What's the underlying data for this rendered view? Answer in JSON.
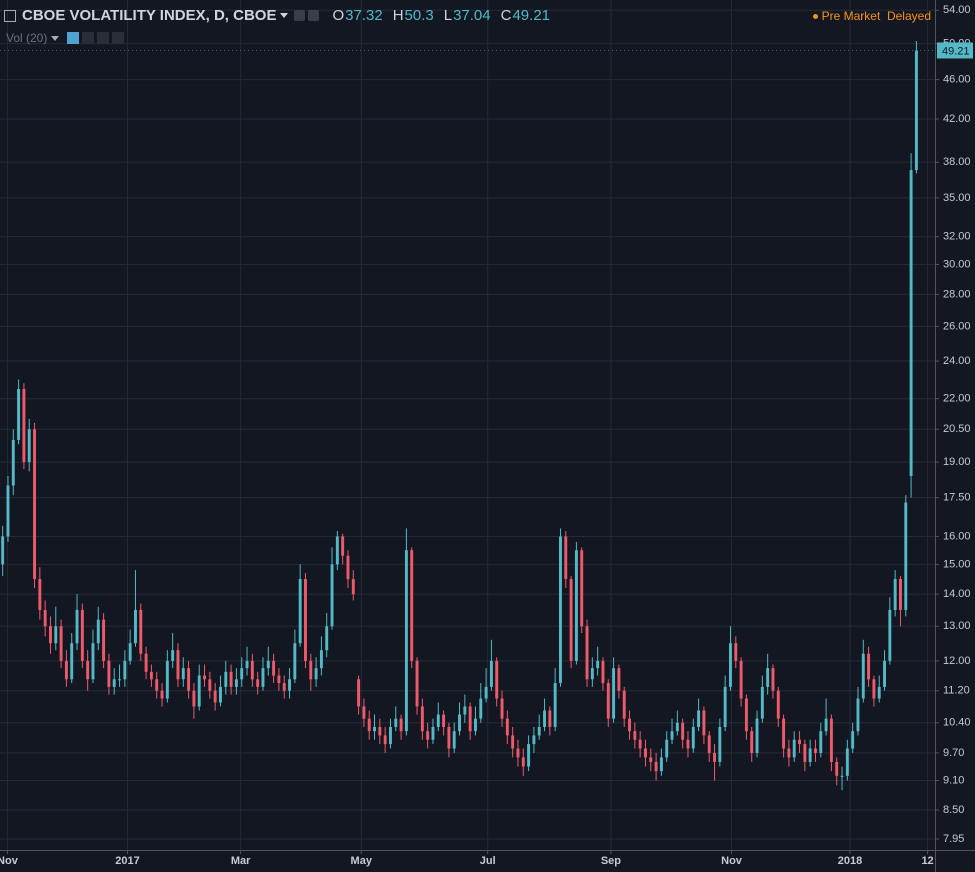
{
  "chart_data": {
    "type": "candlestick",
    "title": "CBOE VOLATILITY INDEX, D, CBOE",
    "ohlc_labels": [
      "O",
      "H",
      "L",
      "C"
    ],
    "indicator": "Vol (20)",
    "market_status": "Pre Market",
    "feed_status": "Delayed",
    "up_color": "#53b9c7",
    "down_color": "#ef5a6b",
    "log_scale": true,
    "grid": true,
    "open": [
      15.0,
      16.0,
      18.0,
      20.0,
      22.5,
      19.0,
      20.5,
      14.5,
      13.5,
      13.0,
      12.5,
      13.0,
      12.0,
      11.5,
      12.5,
      13.5,
      12.0,
      11.5,
      12.5,
      13.2,
      12.0,
      11.3,
      11.5,
      11.5,
      12.0,
      12.5,
      13.5,
      12.2,
      11.7,
      11.5,
      11.2,
      11.0,
      12.0,
      12.3,
      11.5,
      11.8,
      11.2,
      10.8,
      11.6,
      11.5,
      11.2,
      10.9,
      11.3,
      11.7,
      11.3,
      11.5,
      11.8,
      12.0,
      11.5,
      11.3,
      11.8,
      12.0,
      11.6,
      11.4,
      11.2,
      11.5,
      12.5,
      14.5,
      12.0,
      11.5,
      11.8,
      12.3,
      13.0,
      15.0,
      16.0,
      15.3,
      14.5,
      11.5,
      10.8,
      10.5,
      10.2,
      10.3,
      10.1,
      9.9,
      10.3,
      10.5,
      10.2,
      15.5,
      12.0,
      10.8,
      10.2,
      10.0,
      10.3,
      10.6,
      10.3,
      9.8,
      10.2,
      10.6,
      10.8,
      10.2,
      10.5,
      11.0,
      11.3,
      12.0,
      11.0,
      10.5,
      10.1,
      9.8,
      9.6,
      9.4,
      9.9,
      10.1,
      10.3,
      10.7,
      10.3,
      11.4,
      16.0,
      14.5,
      12.0,
      15.5,
      13.0,
      11.5,
      11.8,
      12.0,
      11.4,
      10.5,
      11.8,
      11.2,
      10.5,
      10.2,
      10.0,
      9.8,
      9.6,
      9.5,
      9.3,
      9.6,
      10.0,
      10.2,
      10.4,
      10.0,
      9.8,
      10.3,
      10.7,
      10.1,
      9.7,
      9.5,
      10.3,
      11.3,
      12.5,
      12.0,
      11.0,
      10.2,
      9.7,
      10.5,
      11.3,
      11.8,
      11.2,
      10.5,
      9.8,
      9.6,
      10.0,
      9.9,
      9.5,
      9.8,
      9.7,
      10.2,
      10.5,
      9.5,
      9.2,
      9.2,
      9.8,
      10.2,
      11.0,
      12.2,
      11.5,
      11.0,
      11.3,
      12.0,
      13.5,
      14.5,
      13.5,
      18.4,
      37.32
    ],
    "high": [
      16.4,
      18.4,
      20.5,
      23.0,
      22.8,
      21.0,
      20.8,
      14.9,
      13.8,
      13.3,
      13.6,
      13.2,
      12.3,
      12.8,
      14.0,
      13.7,
      12.3,
      12.9,
      13.6,
      13.4,
      12.2,
      11.8,
      11.9,
      12.3,
      12.9,
      14.8,
      13.7,
      12.4,
      11.9,
      11.7,
      11.4,
      12.3,
      12.8,
      12.5,
      12.1,
      12.0,
      11.4,
      11.9,
      11.9,
      11.7,
      11.4,
      11.6,
      12.0,
      11.9,
      11.8,
      12.1,
      12.4,
      12.2,
      11.7,
      12.1,
      12.4,
      12.2,
      11.8,
      11.6,
      11.8,
      12.9,
      15.0,
      14.7,
      12.2,
      12.1,
      12.7,
      13.4,
      15.6,
      16.2,
      16.1,
      15.5,
      14.8,
      11.6,
      11.0,
      10.7,
      10.6,
      10.5,
      10.3,
      10.5,
      10.8,
      10.6,
      16.3,
      15.6,
      12.1,
      11.0,
      10.4,
      10.5,
      10.9,
      10.7,
      10.4,
      10.4,
      10.9,
      11.1,
      10.9,
      10.8,
      11.4,
      11.8,
      12.6,
      12.1,
      11.2,
      10.7,
      10.3,
      10.0,
      9.8,
      10.1,
      10.3,
      10.6,
      11.0,
      10.8,
      11.8,
      16.3,
      16.2,
      14.6,
      15.8,
      15.6,
      13.2,
      12.1,
      12.4,
      12.1,
      11.5,
      12.1,
      11.9,
      11.3,
      10.7,
      10.4,
      10.2,
      10.0,
      9.8,
      9.7,
      9.8,
      10.2,
      10.5,
      10.7,
      10.5,
      10.2,
      10.5,
      11.0,
      10.8,
      10.2,
      9.9,
      10.5,
      11.6,
      13.0,
      12.7,
      12.1,
      11.1,
      10.3,
      10.7,
      11.6,
      12.2,
      11.9,
      11.3,
      10.6,
      10.0,
      10.2,
      10.2,
      10.0,
      10.0,
      10.0,
      10.4,
      11.0,
      10.6,
      9.6,
      9.4,
      10.0,
      10.4,
      11.3,
      12.6,
      12.4,
      11.6,
      11.6,
      12.3,
      13.9,
      14.8,
      14.6,
      17.6,
      38.8,
      50.3
    ],
    "low": [
      14.6,
      15.8,
      17.6,
      19.8,
      18.7,
      18.6,
      14.2,
      13.2,
      12.7,
      12.2,
      12.3,
      11.8,
      11.3,
      11.4,
      12.3,
      11.8,
      11.2,
      11.4,
      12.3,
      11.8,
      11.1,
      11.1,
      11.3,
      11.3,
      11.9,
      12.4,
      12.0,
      11.5,
      11.3,
      11.0,
      10.8,
      10.9,
      11.8,
      11.3,
      11.3,
      11.0,
      10.5,
      10.7,
      11.3,
      11.0,
      10.7,
      10.8,
      11.1,
      11.1,
      11.1,
      11.3,
      11.6,
      11.3,
      11.1,
      11.2,
      11.6,
      11.4,
      11.2,
      11.0,
      11.0,
      11.4,
      12.4,
      11.8,
      11.2,
      11.3,
      11.6,
      12.1,
      12.9,
      14.8,
      15.0,
      14.2,
      13.8,
      10.6,
      10.3,
      10.0,
      10.0,
      9.9,
      9.7,
      9.8,
      10.2,
      10.0,
      10.1,
      11.8,
      10.6,
      10.0,
      9.8,
      9.9,
      10.2,
      10.1,
      9.6,
      9.7,
      10.1,
      10.4,
      10.0,
      10.1,
      10.4,
      10.9,
      11.2,
      10.8,
      10.3,
      9.9,
      9.6,
      9.4,
      9.2,
      9.3,
      9.7,
      10.0,
      10.2,
      10.1,
      10.2,
      11.3,
      14.2,
      11.8,
      11.9,
      12.8,
      11.3,
      11.3,
      11.6,
      11.2,
      10.3,
      10.4,
      11.0,
      10.3,
      10.0,
      9.8,
      9.6,
      9.4,
      9.3,
      9.1,
      9.2,
      9.5,
      9.9,
      10.1,
      9.8,
      9.6,
      9.7,
      10.2,
      9.9,
      9.5,
      9.1,
      9.4,
      10.2,
      11.2,
      11.8,
      10.8,
      10.0,
      9.5,
      9.6,
      10.4,
      11.1,
      11.0,
      10.3,
      9.6,
      9.4,
      9.5,
      9.7,
      9.3,
      9.4,
      9.5,
      9.6,
      10.1,
      9.3,
      9.0,
      8.9,
      9.1,
      9.7,
      10.1,
      10.9,
      11.3,
      10.8,
      10.9,
      11.2,
      11.9,
      13.3,
      13.0,
      13.3,
      17.5,
      37.04
    ],
    "close": [
      16.0,
      18.0,
      20.0,
      22.5,
      19.0,
      20.5,
      14.5,
      13.5,
      13.0,
      12.5,
      13.0,
      12.0,
      11.5,
      12.5,
      13.5,
      12.0,
      11.5,
      12.5,
      13.2,
      12.0,
      11.3,
      11.5,
      11.5,
      12.0,
      12.5,
      13.5,
      12.2,
      11.7,
      11.5,
      11.2,
      11.0,
      12.0,
      12.3,
      11.5,
      11.8,
      11.2,
      10.8,
      11.6,
      11.5,
      11.2,
      10.9,
      11.3,
      11.7,
      11.3,
      11.5,
      11.8,
      12.0,
      11.5,
      11.3,
      11.8,
      12.0,
      11.6,
      11.4,
      11.2,
      11.5,
      12.5,
      14.5,
      12.0,
      11.5,
      11.8,
      12.3,
      13.0,
      15.0,
      16.0,
      15.3,
      14.5,
      14.0,
      10.8,
      10.5,
      10.2,
      10.3,
      10.1,
      9.9,
      10.3,
      10.5,
      10.2,
      15.5,
      12.0,
      10.8,
      10.2,
      10.0,
      10.3,
      10.6,
      10.3,
      9.8,
      10.2,
      10.6,
      10.8,
      10.2,
      10.5,
      11.0,
      11.3,
      12.0,
      11.0,
      10.5,
      10.1,
      9.8,
      9.6,
      9.4,
      9.9,
      10.1,
      10.3,
      10.7,
      10.3,
      11.4,
      16.0,
      14.5,
      12.0,
      15.5,
      13.0,
      11.5,
      11.8,
      12.0,
      11.4,
      10.5,
      11.8,
      11.2,
      10.5,
      10.2,
      10.0,
      9.8,
      9.6,
      9.5,
      9.3,
      9.6,
      10.0,
      10.2,
      10.4,
      10.0,
      9.8,
      10.3,
      10.7,
      10.1,
      9.7,
      9.5,
      10.3,
      11.3,
      12.5,
      12.0,
      11.0,
      10.2,
      9.7,
      10.5,
      11.3,
      11.8,
      11.2,
      10.5,
      9.8,
      9.6,
      10.0,
      9.9,
      9.5,
      9.8,
      9.7,
      10.2,
      10.5,
      9.5,
      9.2,
      9.2,
      9.8,
      10.2,
      11.0,
      12.2,
      11.5,
      11.0,
      11.3,
      12.0,
      13.5,
      14.5,
      13.5,
      17.3,
      37.32,
      49.21
    ],
    "xlim": [
      0,
      176
    ],
    "xticks": [
      {
        "value": 1.4,
        "label": "Nov"
      },
      {
        "value": 24,
        "label": "2017"
      },
      {
        "value": 45.3,
        "label": "Mar"
      },
      {
        "value": 68,
        "label": "May"
      },
      {
        "value": 91.8,
        "label": "Jul"
      },
      {
        "value": 115,
        "label": "Sep"
      },
      {
        "value": 137.7,
        "label": "Nov"
      },
      {
        "value": 160,
        "label": "2018"
      },
      {
        "value": 174.6,
        "label": "12"
      }
    ],
    "ylim": [
      7.75,
      55.3
    ],
    "yticks": [
      {
        "value": 7.95,
        "label": "7.95"
      },
      {
        "value": 8.5,
        "label": "8.50"
      },
      {
        "value": 9.1,
        "label": "9.10"
      },
      {
        "value": 9.7,
        "label": "9.70"
      },
      {
        "value": 10.4,
        "label": "10.40"
      },
      {
        "value": 11.2,
        "label": "11.20"
      },
      {
        "value": 12,
        "label": "12.00"
      },
      {
        "value": 13,
        "label": "13.00"
      },
      {
        "value": 14,
        "label": "14.00"
      },
      {
        "value": 15,
        "label": "15.00"
      },
      {
        "value": 16,
        "label": "16.00"
      },
      {
        "value": 17.5,
        "label": "17.50"
      },
      {
        "value": 19,
        "label": "19.00"
      },
      {
        "value": 20.5,
        "label": "20.50"
      },
      {
        "value": 22,
        "label": "22.00"
      },
      {
        "value": 24,
        "label": "24.00"
      },
      {
        "value": 26,
        "label": "26.00"
      },
      {
        "value": 28,
        "label": "28.00"
      },
      {
        "value": 30,
        "label": "30.00"
      },
      {
        "value": 32,
        "label": "32.00"
      },
      {
        "value": 35,
        "label": "35.00"
      },
      {
        "value": 38,
        "label": "38.00"
      },
      {
        "value": 42,
        "label": "42.00"
      },
      {
        "value": 46,
        "label": "46.00"
      },
      {
        "value": 50,
        "label": "50.00"
      },
      {
        "value": 54,
        "label": "54.00"
      }
    ]
  }
}
